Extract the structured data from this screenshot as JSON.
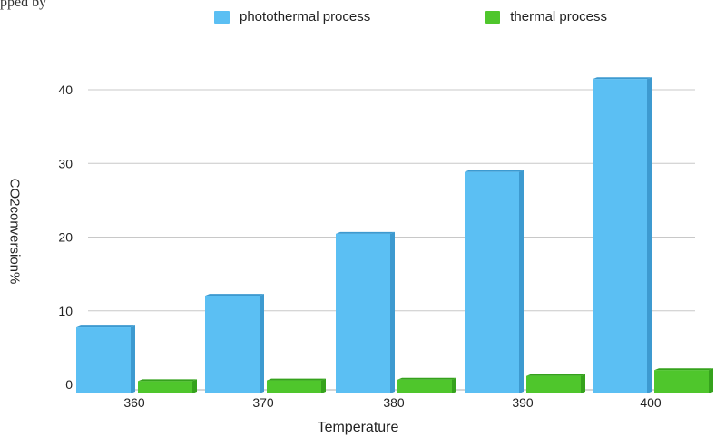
{
  "top_fragment": "pped by",
  "chart_data": {
    "type": "bar",
    "categories": [
      "360",
      "370",
      "380",
      "390",
      "400"
    ],
    "series": [
      {
        "name": "photothermal process",
        "values": [
          7.5,
          11.8,
          20.2,
          28.6,
          41.2
        ],
        "color": "#5bbff3"
      },
      {
        "name": "thermal process",
        "values": [
          0.2,
          0.3,
          0.4,
          0.9,
          1.7
        ],
        "color": "#4fc62c"
      }
    ],
    "xlabel": "Temperature",
    "ylabel": "CO2conversion%",
    "yticks": [
      0,
      10,
      20,
      30,
      40
    ],
    "ylim": [
      0,
      42
    ],
    "grid": true,
    "legend_position": "top"
  }
}
